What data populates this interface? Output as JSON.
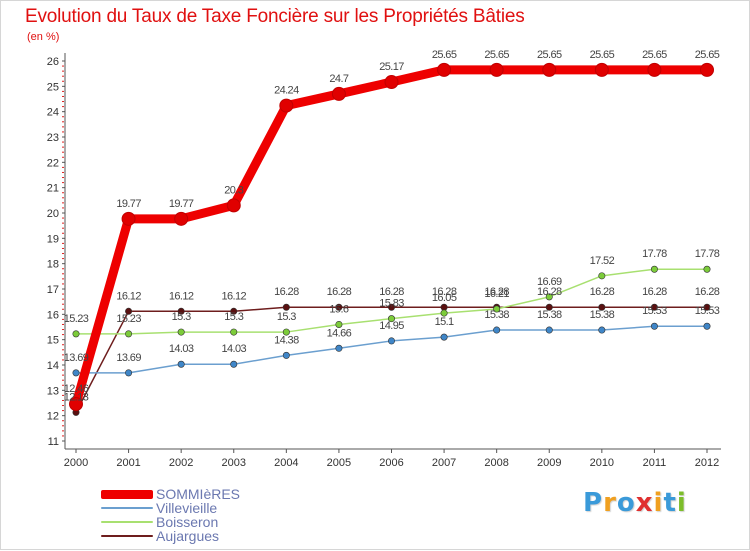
{
  "title": "Evolution du Taux de Taxe Foncière sur les Propriétés Bâties",
  "unit": "(en %)",
  "chart_data": {
    "type": "line",
    "title": "Evolution du Taux de Taxe Foncière sur les Propriétés Bâties",
    "ylabel": "(en %)",
    "xlabel": "",
    "ylim": [
      11,
      26
    ],
    "grid": false,
    "legend_position": "bottom-left",
    "categories": [
      "2000",
      "2001",
      "2002",
      "2003",
      "2004",
      "2005",
      "2006",
      "2007",
      "2008",
      "2009",
      "2010",
      "2011",
      "2012"
    ],
    "yticks": [
      11,
      12,
      13,
      14,
      15,
      16,
      17,
      18,
      19,
      20,
      21,
      22,
      23,
      24,
      25,
      26
    ],
    "series": [
      {
        "name": "Aujargues",
        "color": "#6e1d1d",
        "marker": "#5a1010",
        "values": [
          12.13,
          16.12,
          16.12,
          16.12,
          16.28,
          16.28,
          16.28,
          16.28,
          16.28,
          16.28,
          16.28,
          16.28,
          16.28
        ],
        "labels": [
          "12.13",
          "16.12",
          "16.12",
          "16.12",
          "16.28",
          "16.28",
          "16.28",
          "16.28",
          "16.28",
          "16.28",
          "16.28",
          "16.28",
          "16.28"
        ]
      },
      {
        "name": "Boisseron",
        "color": "#a8e070",
        "marker": "#7ccc3a",
        "values": [
          15.23,
          15.23,
          15.3,
          15.3,
          15.3,
          15.6,
          15.83,
          16.05,
          16.21,
          16.69,
          17.52,
          17.78,
          17.78
        ],
        "labels": [
          "15.23",
          "15.23",
          "15.3",
          "15.3",
          "15.3",
          "15.6",
          "15.83",
          "16.05",
          "16.21",
          "16.69",
          "17.52",
          "17.78",
          "17.78"
        ]
      },
      {
        "name": "Villevieille",
        "color": "#6b9fcf",
        "marker": "#3f86c8",
        "values": [
          13.69,
          13.69,
          14.03,
          14.03,
          14.38,
          14.66,
          14.95,
          15.1,
          15.38,
          15.38,
          15.38,
          15.53,
          15.53
        ],
        "labels": [
          "13.69",
          "13.69",
          "14.03",
          "14.03",
          "14.38",
          "14.66",
          "14.95",
          "15.1",
          "15.38",
          "15.38",
          "15.38",
          "15.53",
          "15.53"
        ]
      },
      {
        "name": "SOMMIèRES",
        "color": "#ee0000",
        "marker": "#e00000",
        "values": [
          12.46,
          19.77,
          19.77,
          20.3,
          24.24,
          24.7,
          25.17,
          25.65,
          25.65,
          25.65,
          25.65,
          25.65,
          25.65
        ],
        "labels": [
          "12.46",
          "19.77",
          "19.77",
          "20.3",
          "24.24",
          "24.7",
          "25.17",
          "25.65",
          "25.65",
          "25.65",
          "25.65",
          "25.65",
          "25.65"
        ]
      }
    ]
  },
  "legend": [
    {
      "name": "SOMMIèRES",
      "color": "#ee0000"
    },
    {
      "name": "Villevieille",
      "color": "#6b9fcf"
    },
    {
      "name": "Boisseron",
      "color": "#a8e070"
    },
    {
      "name": "Aujargues",
      "color": "#6e1d1d"
    }
  ],
  "logo": {
    "letters": [
      "P",
      "r",
      "o",
      "x",
      "i",
      "t",
      "i"
    ],
    "colors": [
      "#3a9ad9",
      "#f0a020",
      "#3a9ad9",
      "#e03030",
      "#f0a020",
      "#3a9ad9",
      "#7cbd2a"
    ]
  }
}
